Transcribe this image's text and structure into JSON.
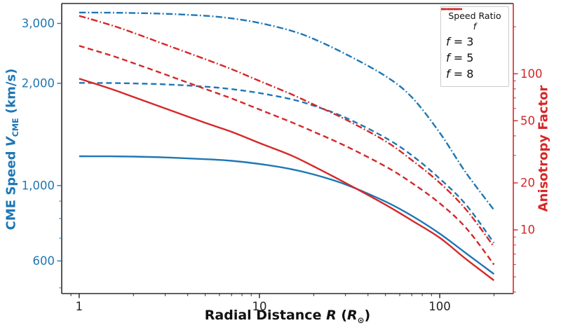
{
  "colors": {
    "blue": "#1f77b4",
    "red": "#d62728",
    "spine": "#2b2b2b",
    "tick_text": "#222222"
  },
  "axes": {
    "x": {
      "label_prefix": "Radial Distance ",
      "label_var": "R",
      "label_unit_open": " (",
      "label_unit_var": "R",
      "label_unit_sub": "⊙",
      "label_unit_close": ")"
    },
    "y_left": {
      "label_prefix": "CME Speed ",
      "label_var": "V",
      "label_var_sub": "CME",
      "label_suffix": " (km/s)"
    },
    "y_right": {
      "label": "Anisotropy Factor"
    }
  },
  "legend": {
    "title_prefix": "Speed Ratio ",
    "title_var": "f",
    "line_color": "#d62728",
    "items": [
      {
        "var": "f",
        "eq": " = ",
        "value": "3",
        "style": "solid"
      },
      {
        "var": "f",
        "eq": " = ",
        "value": "5",
        "style": "dashed"
      },
      {
        "var": "f",
        "eq": " = ",
        "value": "8",
        "style": "dashdot"
      }
    ]
  },
  "chart_data": {
    "type": "line",
    "x_scale": "log",
    "y_scale": "log",
    "grid": false,
    "legend_position": "upper right",
    "x_axis": {
      "range": [
        0.8,
        256
      ],
      "major_ticks": [
        1,
        10,
        100
      ],
      "major_labels": [
        "1",
        "10",
        "100"
      ],
      "minor_ticks": [
        0.9,
        2,
        3,
        4,
        5,
        6,
        7,
        8,
        9,
        20,
        30,
        40,
        50,
        60,
        70,
        80,
        90,
        200
      ],
      "color": "#222222"
    },
    "y_left_axis": {
      "title": "CME Speed V_CME (km/s)",
      "range": [
        481,
        3434
      ],
      "major_ticks": [
        600,
        1000,
        2000,
        3000
      ],
      "major_labels": [
        "600",
        "1,000",
        "2,000",
        "3,000"
      ],
      "minor_ticks": [
        500,
        700,
        800,
        900
      ],
      "color": "#1f77b4"
    },
    "y_right_axis": {
      "title": "Anisotropy Factor",
      "range": [
        3.91,
        281.8
      ],
      "major_ticks": [
        10,
        20,
        50,
        100
      ],
      "major_labels": [
        "10",
        "20",
        "50",
        "100"
      ],
      "minor_ticks": [
        4,
        5,
        6,
        7,
        8,
        9,
        30,
        40,
        60,
        70,
        80,
        90,
        200
      ],
      "color": "#d62728"
    },
    "series": [
      {
        "name": "cme-speed-f3",
        "legend": "f = 3",
        "axis": "left",
        "style": "solid",
        "color": "#1f77b4",
        "points": [
          [
            1,
            1220
          ],
          [
            1.5,
            1219
          ],
          [
            2,
            1217
          ],
          [
            3,
            1210
          ],
          [
            5,
            1196
          ],
          [
            7,
            1183
          ],
          [
            10,
            1158
          ],
          [
            15,
            1118
          ],
          [
            20,
            1078
          ],
          [
            30,
            1008
          ],
          [
            50,
            897
          ],
          [
            70,
            815
          ],
          [
            100,
            722
          ],
          [
            140,
            632
          ],
          [
            200,
            549
          ]
        ]
      },
      {
        "name": "cme-speed-f5",
        "legend": "f = 5",
        "axis": "left",
        "style": "dashed",
        "color": "#1f77b4",
        "points": [
          [
            1,
            2005
          ],
          [
            1.5,
            2003
          ],
          [
            2,
            1998
          ],
          [
            3,
            1985
          ],
          [
            5,
            1955
          ],
          [
            7,
            1922
          ],
          [
            10,
            1872
          ],
          [
            15,
            1795
          ],
          [
            20,
            1718
          ],
          [
            30,
            1585
          ],
          [
            50,
            1382
          ],
          [
            70,
            1228
          ],
          [
            100,
            1048
          ],
          [
            140,
            878
          ],
          [
            200,
            678
          ]
        ]
      },
      {
        "name": "cme-speed-f8",
        "legend": "f = 8",
        "axis": "left",
        "style": "dashdot",
        "color": "#1f77b4",
        "points": [
          [
            1,
            3230
          ],
          [
            1.5,
            3227
          ],
          [
            2,
            3220
          ],
          [
            3,
            3203
          ],
          [
            5,
            3160
          ],
          [
            7,
            3105
          ],
          [
            10,
            3010
          ],
          [
            15,
            2855
          ],
          [
            20,
            2700
          ],
          [
            30,
            2440
          ],
          [
            50,
            2100
          ],
          [
            70,
            1820
          ],
          [
            100,
            1430
          ],
          [
            140,
            1090
          ],
          [
            200,
            848
          ]
        ]
      },
      {
        "name": "anisotropy-f3",
        "legend": "f = 3",
        "axis": "right",
        "style": "solid",
        "color": "#d62728",
        "points": [
          [
            1,
            93
          ],
          [
            1.5,
            80
          ],
          [
            2,
            71
          ],
          [
            3,
            60
          ],
          [
            5,
            48.5
          ],
          [
            7,
            42.5
          ],
          [
            10,
            36
          ],
          [
            15,
            30
          ],
          [
            20,
            25.5
          ],
          [
            30,
            20
          ],
          [
            50,
            14.5
          ],
          [
            70,
            11.5
          ],
          [
            100,
            8.9
          ],
          [
            140,
            6.5
          ],
          [
            200,
            4.75
          ]
        ]
      },
      {
        "name": "anisotropy-f5",
        "legend": "f = 5",
        "axis": "right",
        "style": "dashed",
        "color": "#d62728",
        "points": [
          [
            1,
            151
          ],
          [
            1.5,
            131
          ],
          [
            2,
            117
          ],
          [
            3,
            99
          ],
          [
            5,
            80
          ],
          [
            7,
            69.5
          ],
          [
            10,
            59
          ],
          [
            15,
            49
          ],
          [
            20,
            42.5
          ],
          [
            30,
            34.5
          ],
          [
            50,
            25.5
          ],
          [
            70,
            20
          ],
          [
            100,
            14.8
          ],
          [
            140,
            10.3
          ],
          [
            200,
            6.0
          ]
        ]
      },
      {
        "name": "anisotropy-f8",
        "legend": "f = 8",
        "axis": "right",
        "style": "dashdot",
        "color": "#d62728",
        "points": [
          [
            1,
            235
          ],
          [
            1.5,
            205
          ],
          [
            2,
            183
          ],
          [
            3,
            154
          ],
          [
            5,
            124
          ],
          [
            7,
            107
          ],
          [
            10,
            90
          ],
          [
            15,
            74
          ],
          [
            20,
            63.5
          ],
          [
            30,
            51
          ],
          [
            50,
            37
          ],
          [
            70,
            28
          ],
          [
            100,
            20
          ],
          [
            140,
            13.5
          ],
          [
            200,
            7.8
          ]
        ]
      }
    ]
  }
}
